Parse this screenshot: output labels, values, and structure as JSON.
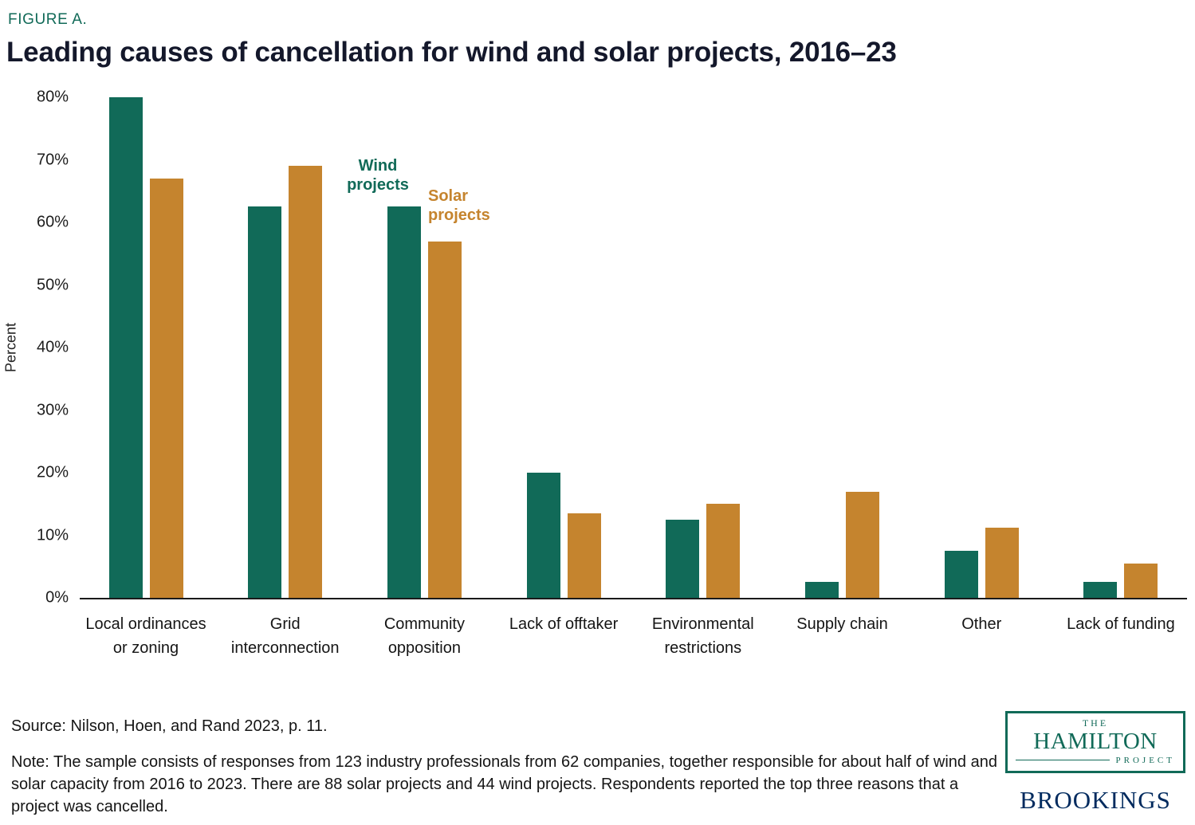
{
  "figure_label": "FIGURE A.",
  "title": "Leading causes of cancellation for wind and solar projects, 2016–23",
  "source": "Source: Nilson, Hoen, and Rand 2023, p. 11.",
  "note": "Note: The sample consists of responses from 123 industry professionals from 62 companies, together responsible for about half of wind and solar capacity from 2016 to 2023. There are 88 solar projects and 44 wind projects. Respondents reported the top three reasons that a project was cancelled.",
  "colors": {
    "wind_teal": "#116a58",
    "solar_orange": "#c5842e",
    "title_ink": "#14182b",
    "brookings_navy": "#002a5e"
  },
  "logos": {
    "hamilton": {
      "line1": "THE",
      "line2": "HAMILTON",
      "line3": "PROJECT"
    },
    "brookings": "BROOKINGS"
  },
  "chart_data": {
    "type": "bar",
    "title": "Leading causes of cancellation for wind and solar projects, 2016–23",
    "xlabel": "",
    "ylabel": "Percent",
    "ylim": [
      0,
      80
    ],
    "yticks": [
      0,
      10,
      20,
      30,
      40,
      50,
      60,
      70,
      80
    ],
    "ytick_format": "percent",
    "grid": false,
    "legend": "inline series annotations near Community opposition bars",
    "categories": [
      "Local ordinances or zoning",
      "Grid interconnection",
      "Community opposition",
      "Lack of offtaker",
      "Environmental restrictions",
      "Supply chain",
      "Other",
      "Lack of funding"
    ],
    "series": [
      {
        "name": "Wind projects",
        "color": "#116a58",
        "values": [
          80,
          62.5,
          62.5,
          20,
          12.5,
          2.5,
          7.5,
          2.5
        ]
      },
      {
        "name": "Solar projects",
        "color": "#c5842e",
        "values": [
          67,
          69,
          57,
          13.5,
          15,
          17,
          11.2,
          5.5
        ]
      }
    ]
  }
}
